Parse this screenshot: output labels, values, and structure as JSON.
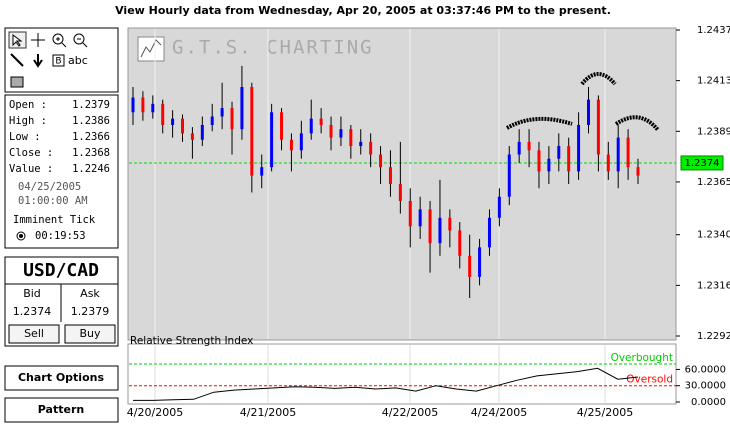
{
  "header": {
    "title": "View Hourly  data from Wednesday, Apr 20, 2005 at 03:37:46 PM to the present."
  },
  "toolbar": {
    "bold_tool": "B",
    "text_tool": "abc"
  },
  "info": {
    "rows": [
      [
        "Open :",
        "1.2379"
      ],
      [
        "High :",
        "1.2386"
      ],
      [
        "Low :",
        "1.2366"
      ],
      [
        "Close :",
        "1.2368"
      ],
      [
        "Value :",
        "1.2246"
      ]
    ],
    "date": "04/25/2005",
    "time": "01:00:00 AM",
    "tick_label": "Imminent Tick",
    "tick_time": "00:19:53"
  },
  "quote": {
    "pair": "USD/CAD",
    "bid_label": "Bid",
    "ask_label": "Ask",
    "bid": "1.2374",
    "ask": "1.2379",
    "sell": "Sell",
    "buy": "Buy"
  },
  "buttons": [
    "Chart Options",
    "Pattern"
  ],
  "chart": {
    "type": "candlestick",
    "watermark": "G.T.S. CHARTING",
    "up_color": "#0000ff",
    "down_color": "#ff0000",
    "ylim": [
      1.2292,
      1.2437
    ],
    "yticks": [
      1.2437,
      1.2413,
      1.2389,
      1.2365,
      {
        "value": 1.234,
        "label": "1.2340"
      },
      1.2316,
      1.2292
    ],
    "current_price": 1.2374,
    "candles": [
      [
        1.2398,
        1.241,
        1.2392,
        1.2405
      ],
      [
        1.2405,
        1.2408,
        1.2394,
        1.2398
      ],
      [
        1.2398,
        1.2406,
        1.2395,
        1.2402
      ],
      [
        1.2402,
        1.2404,
        1.2388,
        1.2392
      ],
      [
        1.2392,
        1.2399,
        1.2386,
        1.2395
      ],
      [
        1.2395,
        1.2397,
        1.2384,
        1.2388
      ],
      [
        1.2388,
        1.2391,
        1.2376,
        1.2385
      ],
      [
        1.2385,
        1.2396,
        1.2382,
        1.2392
      ],
      [
        1.2392,
        1.2402,
        1.2389,
        1.2396
      ],
      [
        1.2396,
        1.2412,
        1.239,
        1.24
      ],
      [
        1.24,
        1.2403,
        1.2378,
        1.239
      ],
      [
        1.239,
        1.242,
        1.2385,
        1.241
      ],
      [
        1.241,
        1.2412,
        1.236,
        1.2368
      ],
      [
        1.2368,
        1.2378,
        1.2362,
        1.2372
      ],
      [
        1.2372,
        1.2402,
        1.237,
        1.2398
      ],
      [
        1.2398,
        1.24,
        1.238,
        1.2385
      ],
      [
        1.2385,
        1.2388,
        1.237,
        1.238
      ],
      [
        1.238,
        1.2394,
        1.2376,
        1.2388
      ],
      [
        1.2388,
        1.2404,
        1.2385,
        1.2395
      ],
      [
        1.2395,
        1.24,
        1.2388,
        1.2392
      ],
      [
        1.2392,
        1.2396,
        1.238,
        1.2386
      ],
      [
        1.2386,
        1.2396,
        1.2382,
        1.239
      ],
      [
        1.239,
        1.2392,
        1.2376,
        1.2382
      ],
      [
        1.2382,
        1.239,
        1.2378,
        1.2384
      ],
      [
        1.2384,
        1.2388,
        1.2372,
        1.2378
      ],
      [
        1.2378,
        1.2382,
        1.2364,
        1.2372
      ],
      [
        1.2372,
        1.238,
        1.2358,
        1.2364
      ],
      [
        1.2364,
        1.2384,
        1.235,
        1.2356
      ],
      [
        1.2356,
        1.2362,
        1.2334,
        1.2344
      ],
      [
        1.2344,
        1.2358,
        1.2338,
        1.2352
      ],
      [
        1.2352,
        1.2356,
        1.2322,
        1.2336
      ],
      [
        1.2336,
        1.2366,
        1.233,
        1.2348
      ],
      [
        1.2348,
        1.2352,
        1.2334,
        1.2342
      ],
      [
        1.2342,
        1.2346,
        1.2324,
        1.233
      ],
      [
        1.233,
        1.234,
        1.231,
        1.232
      ],
      [
        1.232,
        1.2338,
        1.2316,
        1.2334
      ],
      [
        1.2334,
        1.2352,
        1.233,
        1.2348
      ],
      [
        1.2348,
        1.2362,
        1.2344,
        1.2358
      ],
      [
        1.2358,
        1.2382,
        1.2354,
        1.2378
      ],
      [
        1.2378,
        1.239,
        1.2374,
        1.2384
      ],
      [
        1.2384,
        1.239,
        1.2372,
        1.238
      ],
      [
        1.238,
        1.2384,
        1.2362,
        1.237
      ],
      [
        1.237,
        1.2382,
        1.2364,
        1.2376
      ],
      [
        1.2376,
        1.2388,
        1.237,
        1.2382
      ],
      [
        1.2382,
        1.2386,
        1.2364,
        1.237
      ],
      [
        1.237,
        1.2398,
        1.2366,
        1.2392
      ],
      [
        1.2392,
        1.241,
        1.2388,
        1.2404
      ],
      [
        1.2404,
        1.2406,
        1.237,
        1.2378
      ],
      [
        1.2378,
        1.2384,
        1.2366,
        1.237
      ],
      [
        1.237,
        1.2392,
        1.2362,
        1.2386
      ],
      [
        1.2386,
        1.239,
        1.2366,
        1.2372
      ],
      [
        1.2372,
        1.2376,
        1.2364,
        1.2368
      ]
    ],
    "xlabels": [
      "4/20/2005",
      "4/21/2005",
      "4/22/2005",
      "4/24/2005",
      "4/25/2005"
    ]
  },
  "rsi": {
    "title": "Relative Strength Index",
    "ylim": [
      0,
      105
    ],
    "yticks": [
      {
        "value": 60,
        "label": "60.0000"
      },
      {
        "value": 30,
        "label": "30.0000"
      },
      {
        "value": 0,
        "label": "0.0000"
      }
    ],
    "levels": [
      {
        "value": 70,
        "label": "Overbought",
        "color": "#00cc00"
      },
      {
        "value": 30,
        "label": "Oversold",
        "color": "#ff0000"
      }
    ],
    "values": [
      3,
      3,
      4,
      5,
      18,
      22,
      24,
      26,
      28,
      27,
      25,
      27,
      24,
      26,
      20,
      30,
      24,
      20,
      30,
      40,
      48,
      52,
      56,
      62,
      42,
      46
    ]
  }
}
